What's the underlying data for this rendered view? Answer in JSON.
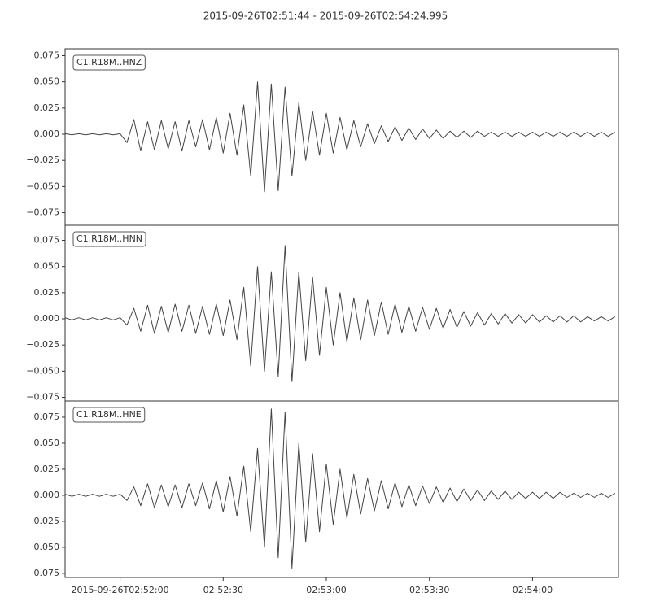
{
  "title": "2015-09-26T02:51:44  -  2015-09-26T02:54:24.995",
  "chart_data": [
    {
      "type": "line",
      "label": "C1.R18M..HNZ",
      "color": "#444444",
      "xlim": [
        0,
        160.995
      ],
      "ylim": [
        -0.087,
        0.0816
      ],
      "yticks": [
        {
          "value": -0.075,
          "label": "−0.075"
        },
        {
          "value": -0.05,
          "label": "−0.050"
        },
        {
          "value": -0.025,
          "label": "−0.025"
        },
        {
          "value": 0,
          "label": "0.000"
        },
        {
          "value": 0.025,
          "label": "0.025"
        },
        {
          "value": 0.05,
          "label": "0.050"
        },
        {
          "value": 0.075,
          "label": "0.075"
        }
      ],
      "x": [
        0,
        2,
        4,
        6,
        8,
        10,
        12,
        14,
        16,
        18,
        20,
        22,
        24,
        26,
        28,
        30,
        32,
        34,
        36,
        38,
        40,
        42,
        44,
        46,
        48,
        50,
        52,
        54,
        56,
        58,
        60,
        62,
        64,
        66,
        68,
        70,
        72,
        74,
        76,
        78,
        80,
        82,
        84,
        86,
        88,
        90,
        92,
        94,
        96,
        98,
        100,
        102,
        104,
        106,
        108,
        110,
        112,
        114,
        116,
        118,
        120,
        122,
        124,
        126,
        128,
        130,
        132,
        134,
        136,
        138,
        140,
        142,
        144,
        146,
        148,
        150,
        152,
        154,
        156,
        158,
        160
      ],
      "values": [
        0.0005,
        -0.0005,
        0.0005,
        -0.0005,
        0.0005,
        -0.0005,
        0.0005,
        -0.0005,
        0.0005,
        -0.008,
        0.014,
        -0.016,
        0.012,
        -0.015,
        0.013,
        -0.014,
        0.012,
        -0.016,
        0.013,
        -0.012,
        0.014,
        -0.015,
        0.016,
        -0.018,
        0.02,
        -0.02,
        0.028,
        -0.04,
        0.05,
        -0.055,
        0.048,
        -0.054,
        0.045,
        -0.04,
        0.03,
        -0.025,
        0.022,
        -0.02,
        0.02,
        -0.018,
        0.016,
        -0.015,
        0.013,
        -0.012,
        0.01,
        -0.009,
        0.008,
        -0.007,
        0.007,
        -0.006,
        0.006,
        -0.005,
        0.005,
        -0.004,
        0.004,
        -0.004,
        0.003,
        -0.003,
        0.003,
        -0.003,
        0.003,
        -0.002,
        0.002,
        -0.002,
        0.002,
        -0.002,
        0.002,
        -0.002,
        0.002,
        -0.002,
        0.002,
        -0.002,
        0.002,
        -0.002,
        0.002,
        -0.002,
        0.002,
        -0.002,
        0.002,
        -0.002,
        0.002
      ]
    },
    {
      "type": "line",
      "label": "C1.R18M..HNN",
      "color": "#444444",
      "xlim": [
        0,
        160.995
      ],
      "ylim": [
        -0.0785,
        0.0894
      ],
      "yticks": [
        {
          "value": -0.075,
          "label": "−0.075"
        },
        {
          "value": -0.05,
          "label": "−0.050"
        },
        {
          "value": -0.025,
          "label": "−0.025"
        },
        {
          "value": 0,
          "label": "0.000"
        },
        {
          "value": 0.025,
          "label": "0.025"
        },
        {
          "value": 0.05,
          "label": "0.050"
        },
        {
          "value": 0.075,
          "label": "0.075"
        }
      ],
      "x": [
        0,
        2,
        4,
        6,
        8,
        10,
        12,
        14,
        16,
        18,
        20,
        22,
        24,
        26,
        28,
        30,
        32,
        34,
        36,
        38,
        40,
        42,
        44,
        46,
        48,
        50,
        52,
        54,
        56,
        58,
        60,
        62,
        64,
        66,
        68,
        70,
        72,
        74,
        76,
        78,
        80,
        82,
        84,
        86,
        88,
        90,
        92,
        94,
        96,
        98,
        100,
        102,
        104,
        106,
        108,
        110,
        112,
        114,
        116,
        118,
        120,
        122,
        124,
        126,
        128,
        130,
        132,
        134,
        136,
        138,
        140,
        142,
        144,
        146,
        148,
        150,
        152,
        154,
        156,
        158,
        160
      ],
      "values": [
        0.001,
        -0.001,
        0.001,
        -0.001,
        0.001,
        -0.001,
        0.001,
        -0.001,
        0.001,
        -0.006,
        0.01,
        -0.012,
        0.013,
        -0.014,
        0.012,
        -0.013,
        0.014,
        -0.012,
        0.013,
        -0.014,
        0.012,
        -0.015,
        0.014,
        -0.016,
        0.018,
        -0.02,
        0.03,
        -0.045,
        0.05,
        -0.05,
        0.045,
        -0.055,
        0.07,
        -0.06,
        0.045,
        -0.04,
        0.04,
        -0.035,
        0.03,
        -0.025,
        0.025,
        -0.022,
        0.02,
        -0.02,
        0.018,
        -0.016,
        0.016,
        -0.015,
        0.014,
        -0.013,
        0.012,
        -0.012,
        0.011,
        -0.01,
        0.01,
        -0.009,
        0.009,
        -0.008,
        0.007,
        -0.007,
        0.006,
        -0.006,
        0.005,
        -0.005,
        0.005,
        -0.004,
        0.004,
        -0.004,
        0.004,
        -0.003,
        0.003,
        -0.003,
        0.003,
        -0.003,
        0.003,
        -0.003,
        0.002,
        -0.002,
        0.002,
        -0.002,
        0.002
      ]
    },
    {
      "type": "line",
      "label": "C1.R18M..HNE",
      "color": "#444444",
      "xlim": [
        0,
        160.995
      ],
      "ylim": [
        -0.079,
        0.0906
      ],
      "yticks": [
        {
          "value": -0.075,
          "label": "−0.075"
        },
        {
          "value": -0.05,
          "label": "−0.050"
        },
        {
          "value": -0.025,
          "label": "−0.025"
        },
        {
          "value": 0,
          "label": "0.000"
        },
        {
          "value": 0.025,
          "label": "0.025"
        },
        {
          "value": 0.05,
          "label": "0.050"
        },
        {
          "value": 0.075,
          "label": "0.075"
        }
      ],
      "xticks": [
        {
          "value": 16,
          "label": "2015-09-26T02:52:00"
        },
        {
          "value": 46,
          "label": "02:52:30"
        },
        {
          "value": 76,
          "label": "02:53:00"
        },
        {
          "value": 106,
          "label": "02:53:30"
        },
        {
          "value": 136,
          "label": "02:54:00"
        }
      ],
      "x": [
        0,
        2,
        4,
        6,
        8,
        10,
        12,
        14,
        16,
        18,
        20,
        22,
        24,
        26,
        28,
        30,
        32,
        34,
        36,
        38,
        40,
        42,
        44,
        46,
        48,
        50,
        52,
        54,
        56,
        58,
        60,
        62,
        64,
        66,
        68,
        70,
        72,
        74,
        76,
        78,
        80,
        82,
        84,
        86,
        88,
        90,
        92,
        94,
        96,
        98,
        100,
        102,
        104,
        106,
        108,
        110,
        112,
        114,
        116,
        118,
        120,
        122,
        124,
        126,
        128,
        130,
        132,
        134,
        136,
        138,
        140,
        142,
        144,
        146,
        148,
        150,
        152,
        154,
        156,
        158,
        160
      ],
      "values": [
        0.001,
        -0.001,
        0.001,
        -0.001,
        0.001,
        -0.001,
        0.001,
        -0.001,
        0.001,
        -0.005,
        0.008,
        -0.01,
        0.011,
        -0.012,
        0.01,
        -0.011,
        0.01,
        -0.012,
        0.011,
        -0.01,
        0.012,
        -0.013,
        0.014,
        -0.016,
        0.018,
        -0.02,
        0.028,
        -0.035,
        0.045,
        -0.05,
        0.083,
        -0.06,
        0.08,
        -0.07,
        0.05,
        -0.045,
        0.04,
        -0.035,
        0.03,
        -0.028,
        0.025,
        -0.022,
        0.02,
        -0.018,
        0.016,
        -0.015,
        0.014,
        -0.013,
        0.012,
        -0.011,
        0.01,
        -0.01,
        0.009,
        -0.008,
        0.008,
        -0.007,
        0.007,
        -0.006,
        0.006,
        -0.005,
        0.005,
        -0.005,
        0.004,
        -0.004,
        0.004,
        -0.004,
        0.003,
        -0.003,
        0.003,
        -0.003,
        0.003,
        -0.003,
        0.003,
        -0.002,
        0.002,
        -0.002,
        0.002,
        -0.002,
        0.002,
        -0.002,
        0.002
      ]
    }
  ]
}
